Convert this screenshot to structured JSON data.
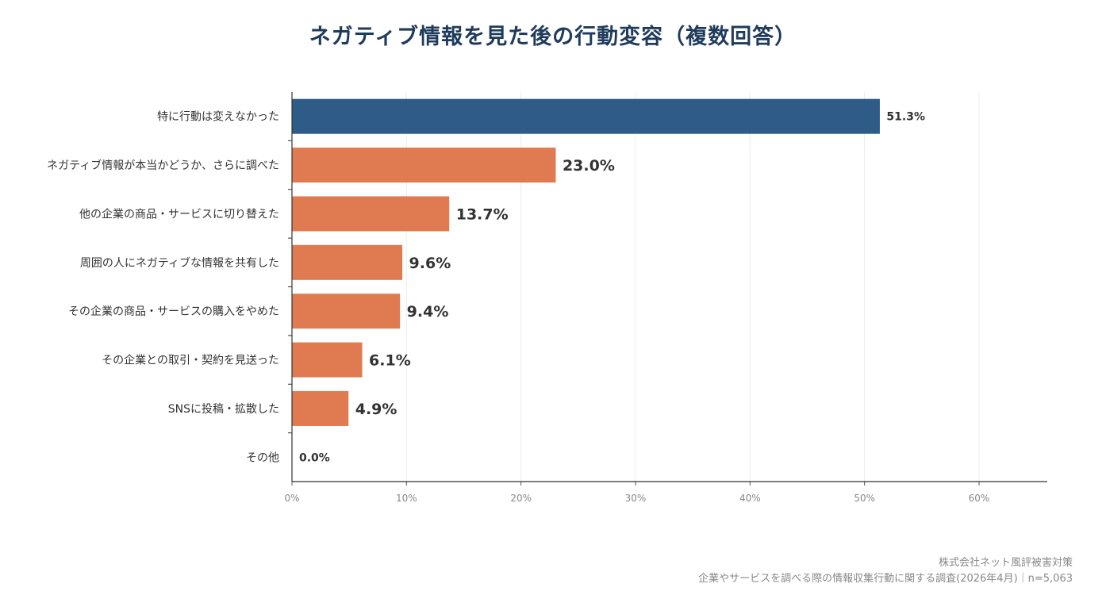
{
  "chart_data": {
    "type": "bar",
    "orientation": "horizontal",
    "title": "ネガティブ情報を見た後の行動変容（複数回答）",
    "categories": [
      "特に行動は変えなかった",
      "ネガティブ情報が本当かどうか、さらに調べた",
      "他の企業の商品・サービスに切り替えた",
      "周囲の人にネガティブな情報を共有した",
      "その企業の商品・サービスの購入をやめた",
      "その企業との取引・契約を見送った",
      "SNSに投稿・拡散した",
      "その他"
    ],
    "values": [
      51.3,
      23.0,
      13.7,
      9.6,
      9.4,
      6.1,
      4.9,
      0.0
    ],
    "value_labels": [
      "51.3%",
      "23.0%",
      "13.7%",
      "9.6%",
      "9.4%",
      "6.1%",
      "4.9%",
      "0.0%"
    ],
    "xlim": [
      0,
      66
    ],
    "ticks": [
      0,
      10,
      20,
      30,
      40,
      50,
      60
    ],
    "tick_labels": [
      "0%",
      "10%",
      "20%",
      "30%",
      "40%",
      "50%",
      "60%"
    ],
    "grid": true,
    "colors": {
      "highlight": "#2e5b88",
      "default": "#e07a50"
    }
  },
  "footer": {
    "company": "株式会社ネット風評被害対策",
    "source": "企業やサービスを調べる際の情報収集行動に関する調査(2026年4月)｜n=5,063"
  }
}
